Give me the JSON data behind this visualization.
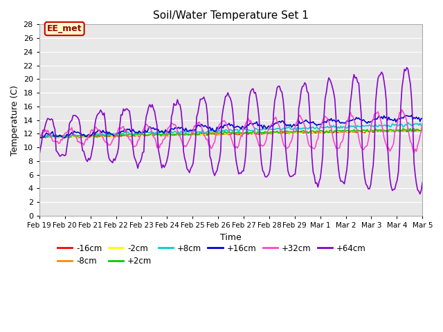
{
  "title": "Soil/Water Temperature Set 1",
  "xlabel": "Time",
  "ylabel": "Temperature (C)",
  "ylim": [
    0,
    28
  ],
  "yticks": [
    0,
    2,
    4,
    6,
    8,
    10,
    12,
    14,
    16,
    18,
    20,
    22,
    24,
    26,
    28
  ],
  "plot_bg_color": "#e8e8e8",
  "fig_bg_color": "#ffffff",
  "annotation_text": "EE_met",
  "annotation_bg": "#ffffcc",
  "annotation_border": "#cc0000",
  "series_colors": {
    "-16cm": "#ff0000",
    "-8cm": "#ff8800",
    "-2cm": "#ffff00",
    "+2cm": "#00cc00",
    "+8cm": "#00cccc",
    "+16cm": "#0000cc",
    "+32cm": "#ff44cc",
    "+64cm": "#8800cc"
  },
  "xtick_labels": [
    "Feb 19",
    "Feb 20",
    "Feb 21",
    "Feb 22",
    "Feb 23",
    "Feb 24",
    "Feb 25",
    "Feb 26",
    "Feb 27",
    "Feb 28",
    "Feb 29",
    "Mar 1",
    "Mar 2",
    "Mar 3",
    "Mar 4",
    "Mar 5"
  ]
}
